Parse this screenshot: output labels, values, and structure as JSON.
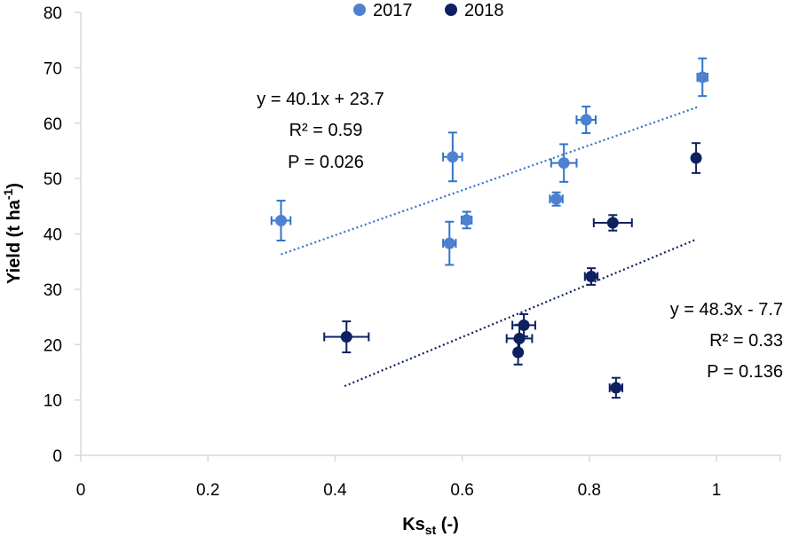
{
  "chart_data": {
    "type": "scatter",
    "xlabel": {
      "main": "Ks",
      "sub": "st",
      "suffix": " (-)"
    },
    "ylabel": {
      "main": "Yield (t ha",
      "sup": "-1",
      "suffix": ")"
    },
    "xlim": [
      0,
      1.1
    ],
    "ylim": [
      0,
      80
    ],
    "xticks": [
      0,
      0.2,
      0.4,
      0.6,
      0.8,
      1
    ],
    "xtick_labels": [
      "0",
      "0.2",
      "0.4",
      "0.6",
      "0.8",
      "1"
    ],
    "yticks": [
      0,
      10,
      20,
      30,
      40,
      50,
      60,
      70,
      80
    ],
    "ytick_labels": [
      "0",
      "10",
      "20",
      "30",
      "40",
      "50",
      "60",
      "70",
      "80"
    ],
    "grid": false,
    "legend": {
      "position": "top-center"
    },
    "series": [
      {
        "name": "2017",
        "color": "#4f81d1",
        "errorbar_color": "#2e75c8",
        "points": [
          {
            "x": 0.315,
            "y": 42.4,
            "xerr": 0.015,
            "yerr": 3.6
          },
          {
            "x": 0.58,
            "y": 38.3,
            "xerr": 0.01,
            "yerr": 3.9
          },
          {
            "x": 0.585,
            "y": 53.9,
            "xerr": 0.015,
            "yerr": 4.4
          },
          {
            "x": 0.607,
            "y": 42.5,
            "xerr": 0.008,
            "yerr": 1.5
          },
          {
            "x": 0.748,
            "y": 46.3,
            "xerr": 0.01,
            "yerr": 1.2
          },
          {
            "x": 0.76,
            "y": 52.8,
            "xerr": 0.02,
            "yerr": 3.4
          },
          {
            "x": 0.795,
            "y": 60.6,
            "xerr": 0.015,
            "yerr": 2.4
          },
          {
            "x": 0.978,
            "y": 68.3,
            "xerr": 0.008,
            "yerr": 3.4
          }
        ],
        "trendline": {
          "x_range": [
            0.315,
            0.97
          ],
          "y_range": [
            36.3,
            62.9
          ],
          "equation": "y = 40.1x + 23.7",
          "r2": "R² = 0.59",
          "p": "P = 0.026"
        }
      },
      {
        "name": "2018",
        "color": "#0d2160",
        "errorbar_color": "#0d2160",
        "points": [
          {
            "x": 0.418,
            "y": 21.4,
            "xerr": 0.035,
            "yerr": 2.8
          },
          {
            "x": 0.688,
            "y": 18.6,
            "xerr": 0.005,
            "yerr": 2.2
          },
          {
            "x": 0.69,
            "y": 21.1,
            "xerr": 0.02,
            "yerr": 2.5
          },
          {
            "x": 0.697,
            "y": 23.5,
            "xerr": 0.018,
            "yerr": 2.0
          },
          {
            "x": 0.803,
            "y": 32.3,
            "xerr": 0.01,
            "yerr": 1.5
          },
          {
            "x": 0.837,
            "y": 42.0,
            "xerr": 0.03,
            "yerr": 1.4
          },
          {
            "x": 0.842,
            "y": 12.2,
            "xerr": 0.01,
            "yerr": 1.8
          },
          {
            "x": 0.968,
            "y": 53.7,
            "xerr": 0.005,
            "yerr": 2.7
          }
        ],
        "trendline": {
          "x_range": [
            0.415,
            0.968
          ],
          "y_range": [
            12.5,
            39.0
          ],
          "equation": "y = 48.3x - 7.7",
          "r2": "R² = 0.33",
          "p": "P = 0.136"
        }
      }
    ]
  }
}
